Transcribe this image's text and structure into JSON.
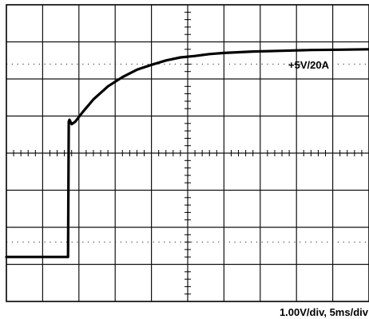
{
  "chart_data": {
    "type": "line",
    "title": "",
    "xlabel": "",
    "ylabel": "",
    "x_divisions": 10,
    "y_divisions": 8,
    "xlim": [
      0,
      50
    ],
    "ylim": [
      -4,
      4
    ],
    "x_unit": "ms",
    "y_unit": "V",
    "grid": true,
    "series": [
      {
        "name": "+5V/20A",
        "x": [
          0,
          8.5,
          8.6,
          8.7,
          9.0,
          9.5,
          10.5,
          12.0,
          14.0,
          16.0,
          18.0,
          20.0,
          22.0,
          24.0,
          26.0,
          28.0,
          30.0,
          34.0,
          38.0,
          42.0,
          46.0,
          50.0
        ],
        "y": [
          -2.8,
          -2.8,
          0.85,
          0.9,
          0.78,
          0.85,
          1.1,
          1.45,
          1.8,
          2.05,
          2.25,
          2.38,
          2.5,
          2.58,
          2.62,
          2.67,
          2.7,
          2.74,
          2.76,
          2.78,
          2.79,
          2.8
        ]
      }
    ],
    "annotations": {
      "trace_label": "+5V/20A",
      "scale": "1.00V/div,  5ms/div"
    }
  }
}
